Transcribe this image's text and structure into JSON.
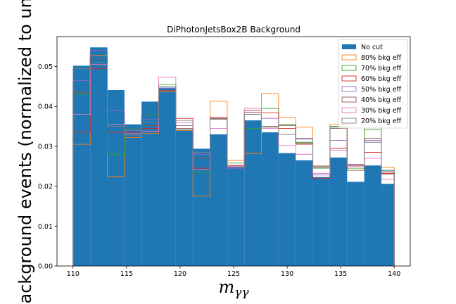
{
  "chart_data": {
    "type": "bar",
    "title": "DiPhotonJetsBox2B Background",
    "xlabel": "m",
    "xlabel_sub": "γγ",
    "ylabel": "Background events (normalized to unit",
    "xlim": [
      108.5,
      141.5
    ],
    "ylim": [
      0.0,
      0.0575
    ],
    "xticks": [
      110,
      115,
      120,
      125,
      130,
      135,
      140
    ],
    "xtick_labels": [
      "110",
      "115",
      "120",
      "125",
      "130",
      "135",
      "140"
    ],
    "yticks": [
      0.0,
      0.01,
      0.02,
      0.03,
      0.04,
      0.05
    ],
    "ytick_labels": [
      "0.00",
      "0.01",
      "0.02",
      "0.03",
      "0.04",
      "0.05"
    ],
    "bin_edges": [
      110,
      111.6,
      113.2,
      114.8,
      116.4,
      118.0,
      119.6,
      121.2,
      122.8,
      124.4,
      126.0,
      127.6,
      129.2,
      130.8,
      132.4,
      134.0,
      135.6,
      137.2,
      138.8,
      140
    ],
    "legend_position": "upper right",
    "series": [
      {
        "name": "No cut",
        "style": "filled",
        "color": "#1f77b4",
        "values": [
          0.0502,
          0.0548,
          0.0441,
          0.0355,
          0.0412,
          0.0447,
          0.0342,
          0.0294,
          0.033,
          0.0248,
          0.0365,
          0.0335,
          0.0283,
          0.0265,
          0.0223,
          0.0272,
          0.0211,
          0.0252,
          0.0206
        ]
      },
      {
        "name": "80% bkg eff",
        "style": "step",
        "color": "#ff7f0e",
        "values": [
          0.0305,
          0.0528,
          0.0224,
          0.0322,
          0.0332,
          0.0437,
          0.034,
          0.0175,
          0.0413,
          0.0265,
          0.0282,
          0.0432,
          0.0372,
          0.0348,
          0.0251,
          0.0355,
          0.0253,
          0.037,
          0.0248
        ]
      },
      {
        "name": "70% bkg eff",
        "style": "step",
        "color": "#2ca02c",
        "values": [
          0.043,
          0.0505,
          0.028,
          0.0343,
          0.0378,
          0.0455,
          0.036,
          0.0235,
          0.0368,
          0.0258,
          0.0345,
          0.0395,
          0.0355,
          0.031,
          0.0245,
          0.035,
          0.0245,
          0.0342,
          0.024
        ]
      },
      {
        "name": "60% bkg eff",
        "style": "step",
        "color": "#d62728",
        "values": [
          0.0335,
          0.0495,
          0.0335,
          0.0335,
          0.0345,
          0.044,
          0.037,
          0.0245,
          0.0372,
          0.0252,
          0.039,
          0.0384,
          0.0345,
          0.0305,
          0.022,
          0.0295,
          0.024,
          0.0285,
          0.0232
        ]
      },
      {
        "name": "50% bkg eff",
        "style": "step",
        "color": "#9467bd",
        "values": [
          0.0465,
          0.054,
          0.039,
          0.034,
          0.0368,
          0.0445,
          0.0352,
          0.028,
          0.0368,
          0.0245,
          0.038,
          0.037,
          0.033,
          0.0318,
          0.0228,
          0.0315,
          0.0255,
          0.0315,
          0.0238
        ]
      },
      {
        "name": "40% bkg eff",
        "style": "step",
        "color": "#8c564b",
        "values": [
          0.0435,
          0.052,
          0.035,
          0.0328,
          0.0352,
          0.044,
          0.0345,
          0.027,
          0.037,
          0.025,
          0.0385,
          0.0348,
          0.0352,
          0.0308,
          0.0248,
          0.0345,
          0.024,
          0.032,
          0.0235
        ]
      },
      {
        "name": "30% bkg eff",
        "style": "step",
        "color": "#e377c2",
        "values": [
          0.038,
          0.0505,
          0.0355,
          0.0332,
          0.0338,
          0.0473,
          0.036,
          0.0242,
          0.0345,
          0.025,
          0.0395,
          0.0345,
          0.0302,
          0.028,
          0.0232,
          0.029,
          0.025,
          0.027,
          0.0218
        ]
      },
      {
        "name": "20% bkg eff",
        "style": "step",
        "color": "#7f7f7f",
        "values": [
          0.0495,
          0.051,
          0.035,
          0.0328,
          0.036,
          0.045,
          0.0365,
          0.0285,
          0.0368,
          0.0248,
          0.038,
          0.035,
          0.033,
          0.032,
          0.025,
          0.0348,
          0.0252,
          0.031,
          0.023
        ]
      }
    ]
  }
}
